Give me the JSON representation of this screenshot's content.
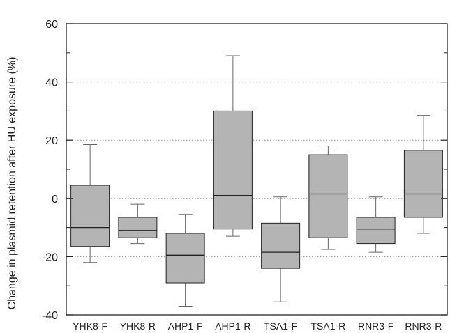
{
  "chart_data": {
    "type": "box",
    "title": "",
    "xlabel": "",
    "ylabel": "Change in plasmid retention after HU exposure (%)",
    "ylim": [
      -40,
      60
    ],
    "yticks": [
      "-40",
      "-20",
      "0",
      "20",
      "40",
      "60"
    ],
    "grid": "horizontal-dotted",
    "colors": {
      "box_fill": "#b4b4b4",
      "stroke": "#222222",
      "whisker": "#666666",
      "grid": "#9a9a9a"
    },
    "categories": [
      "YHK8-F",
      "YHK8-R",
      "AHP1-F",
      "AHP1-R",
      "TSA1-F",
      "TSA1-R",
      "RNR3-F",
      "RNR3-R"
    ],
    "boxes": [
      {
        "min": -22,
        "q1": -16.5,
        "median": -10,
        "q3": 4.5,
        "max": 18.5
      },
      {
        "min": -15.5,
        "q1": -13.5,
        "median": -11,
        "q3": -6.5,
        "max": -2
      },
      {
        "min": -37,
        "q1": -29,
        "median": -19.5,
        "q3": -12,
        "max": -5.5
      },
      {
        "min": -13,
        "q1": -10.5,
        "median": 1,
        "q3": 30,
        "max": 49
      },
      {
        "min": -35.5,
        "q1": -24,
        "median": -18.5,
        "q3": -8.5,
        "max": 0.5
      },
      {
        "min": -17.5,
        "q1": -13.5,
        "median": 1.5,
        "q3": 15,
        "max": 18
      },
      {
        "min": -18.5,
        "q1": -15.5,
        "median": -10.5,
        "q3": -6.5,
        "max": 0.5
      },
      {
        "min": -12,
        "q1": -6.5,
        "median": 1.5,
        "q3": 16.5,
        "max": 28.5
      }
    ]
  }
}
